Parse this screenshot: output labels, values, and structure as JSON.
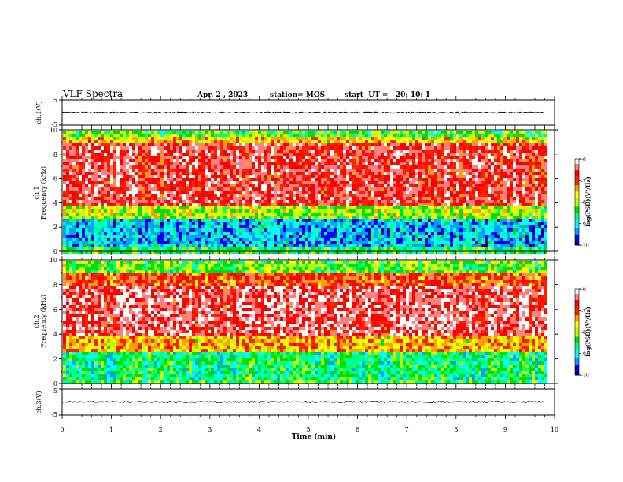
{
  "header": {
    "title": "VLF Spectra",
    "date": "Apr. 2 , 2023",
    "station": "station= MOS",
    "start_time": "start  UT =   20: 10: 1"
  },
  "chart_data": [
    {
      "type": "line",
      "panel": "waveform-ch1",
      "ylabel": "ch.1(V)",
      "ylim": [
        -5,
        5
      ],
      "yticks": [
        "5",
        "-5"
      ],
      "x": [
        0,
        1,
        2,
        3,
        4,
        5,
        6,
        7,
        8,
        9,
        9.8
      ],
      "values": [
        0,
        0,
        0,
        0,
        0,
        0,
        0,
        0,
        0,
        0,
        0
      ],
      "color": "#000000"
    },
    {
      "type": "heatmap",
      "panel": "spectrogram-ch1",
      "ylabel_line1": "ch.1",
      "ylabel_line2": "Frequency (kHz)",
      "ylim": [
        0,
        10
      ],
      "yticks": [
        "0",
        "2",
        "4",
        "6",
        "8",
        "10"
      ],
      "xlim": [
        0,
        10
      ],
      "data_end_min": 9.8,
      "bands_khz": [
        {
          "from": 0.0,
          "to": 0.4,
          "level": -8.5
        },
        {
          "from": 0.4,
          "to": 2.8,
          "level": -9.2
        },
        {
          "from": 2.8,
          "to": 3.8,
          "level": -8.0
        },
        {
          "from": 3.8,
          "to": 9.0,
          "level": -6.6
        },
        {
          "from": 9.0,
          "to": 9.5,
          "level": -7.6
        },
        {
          "from": 9.5,
          "to": 10.0,
          "level": -8.3
        }
      ],
      "colorbar": {
        "label": "log(PSD)(V²/Hz)",
        "range": [
          -10,
          -6
        ],
        "ticks": [
          "-6",
          "-7",
          "-8",
          "-9",
          "-10"
        ]
      }
    },
    {
      "type": "heatmap",
      "panel": "spectrogram-ch2",
      "ylabel_line1": "ch.2",
      "ylabel_line2": "Frequency (kHz)",
      "ylim": [
        0,
        10
      ],
      "yticks": [
        "0",
        "2",
        "4",
        "6",
        "8",
        "10"
      ],
      "xlim": [
        0,
        10
      ],
      "data_end_min": 9.8,
      "bands_khz": [
        {
          "from": 0.0,
          "to": 0.5,
          "level": -8.4
        },
        {
          "from": 0.5,
          "to": 2.8,
          "level": -8.6
        },
        {
          "from": 2.8,
          "to": 4.0,
          "level": -7.4
        },
        {
          "from": 4.0,
          "to": 8.0,
          "level": -6.4
        },
        {
          "from": 8.0,
          "to": 9.0,
          "level": -7.0
        },
        {
          "from": 9.0,
          "to": 10.0,
          "level": -8.2
        }
      ],
      "colorbar": {
        "label": "log(PSD)(V²/Hz)",
        "range": [
          -10,
          -6
        ],
        "ticks": [
          "-6",
          "-7",
          "-8",
          "-9",
          "-10"
        ]
      }
    },
    {
      "type": "line",
      "panel": "waveform-ch3",
      "ylabel": "ch.3(V)",
      "ylim": [
        -5,
        5
      ],
      "yticks": [
        "5",
        "-5"
      ],
      "x": [
        0,
        1,
        2,
        3,
        4,
        5,
        6,
        7,
        8,
        9,
        9.8
      ],
      "values": [
        0,
        0,
        0,
        0,
        0,
        0,
        0,
        0,
        0,
        0,
        0
      ],
      "color": "#000000"
    }
  ],
  "x_axis": {
    "label": "Time (min)",
    "ticks": [
      "0",
      "1",
      "2",
      "3",
      "4",
      "5",
      "6",
      "7",
      "8",
      "9",
      "10"
    ],
    "range": [
      0,
      10
    ]
  },
  "colormap": [
    "#000080",
    "#0000ff",
    "#00a0ff",
    "#00ffff",
    "#00ff80",
    "#00e000",
    "#c0ff00",
    "#ffff00",
    "#ffa000",
    "#ff2000",
    "#ff0000",
    "#ff8080",
    "#ffffff"
  ]
}
